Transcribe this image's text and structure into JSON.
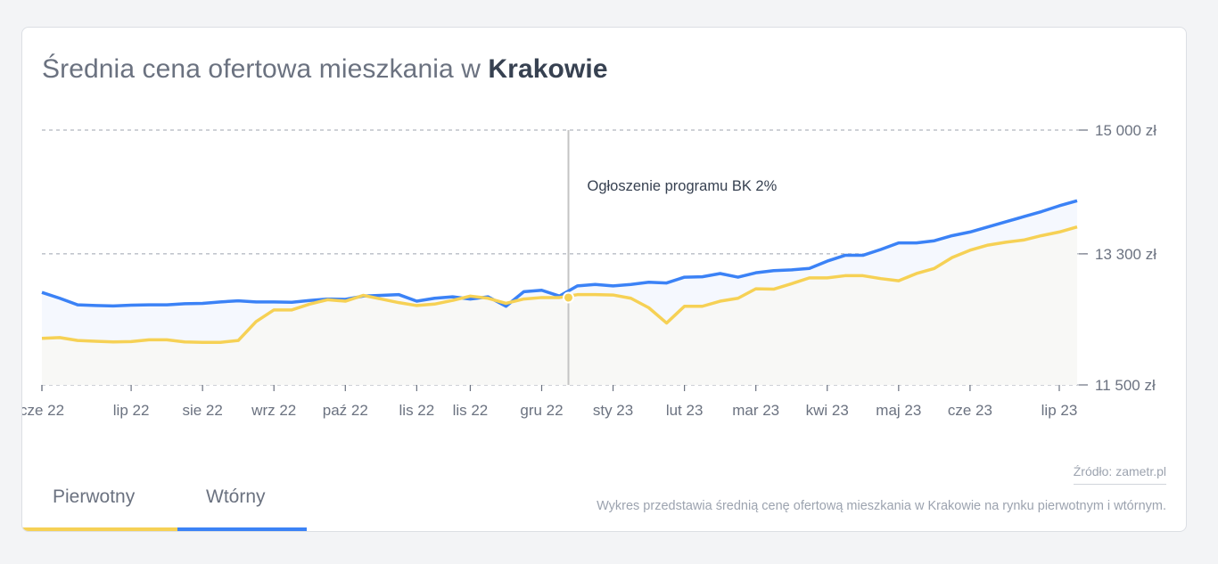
{
  "card": {
    "title_prefix": "Średnia cena ofertowa mieszkania w ",
    "title_city": "Krakowie",
    "source": "Źródło: zametr.pl",
    "description": "Wykres przedstawia średnią cenę ofertową mieszkania w Krakowie na rynku pierwotnym i wtórnym."
  },
  "tabs": [
    {
      "label": "Pierwotny",
      "color": "#f6d155"
    },
    {
      "label": "Wtórny",
      "color": "#3b82f6"
    }
  ],
  "chart_data": {
    "type": "line",
    "title": "Średnia cena ofertowa mieszkania w Krakowie",
    "xlabel": "",
    "ylabel": "",
    "ylim": [
      11500,
      15000
    ],
    "y_ticks": [
      11500,
      13300,
      15000
    ],
    "y_tick_labels": [
      "11 500 zł",
      "13 300 zł",
      "15 000 zł"
    ],
    "grid": true,
    "x_ticks": [
      {
        "index": 0,
        "label": "cze 22"
      },
      {
        "index": 5,
        "label": "lip 22"
      },
      {
        "index": 9,
        "label": "sie 22"
      },
      {
        "index": 13,
        "label": "wrz 22"
      },
      {
        "index": 17,
        "label": "paź 22"
      },
      {
        "index": 21,
        "label": "lis 22"
      },
      {
        "index": 24,
        "label": "lis 22"
      },
      {
        "index": 28,
        "label": "gru 22"
      },
      {
        "index": 32,
        "label": "sty 23"
      },
      {
        "index": 36,
        "label": "lut 23"
      },
      {
        "index": 40,
        "label": "mar 23"
      },
      {
        "index": 44,
        "label": "kwi 23"
      },
      {
        "index": 48,
        "label": "maj 23"
      },
      {
        "index": 52,
        "label": "cze 23"
      },
      {
        "index": 57,
        "label": "lip 23"
      }
    ],
    "annotation": {
      "index": 29.5,
      "label": "Ogłoszenie programu BK 2%",
      "value": 12700
    },
    "series": [
      {
        "name": "Wtórny",
        "color": "#3b82f6",
        "values": [
          12770,
          12690,
          12600,
          12590,
          12585,
          12595,
          12600,
          12600,
          12615,
          12620,
          12640,
          12655,
          12640,
          12640,
          12635,
          12660,
          12680,
          12675,
          12720,
          12730,
          12740,
          12650,
          12690,
          12710,
          12680,
          12710,
          12580,
          12780,
          12800,
          12720,
          12860,
          12880,
          12860,
          12880,
          12910,
          12900,
          12980,
          12985,
          13030,
          12980,
          13040,
          13070,
          13080,
          13100,
          13200,
          13280,
          13280,
          13360,
          13450,
          13450,
          13480,
          13550,
          13600,
          13670,
          13740,
          13810,
          13880,
          13960,
          14030
        ]
      },
      {
        "name": "Pierwotny",
        "color": "#f6d155",
        "values": [
          12140,
          12150,
          12110,
          12100,
          12090,
          12095,
          12120,
          12120,
          12090,
          12085,
          12085,
          12110,
          12370,
          12530,
          12530,
          12610,
          12670,
          12650,
          12730,
          12680,
          12630,
          12590,
          12610,
          12660,
          12720,
          12690,
          12620,
          12680,
          12700,
          12700,
          12740,
          12740,
          12735,
          12690,
          12560,
          12350,
          12580,
          12580,
          12650,
          12690,
          12820,
          12815,
          12890,
          12970,
          12970,
          13000,
          13000,
          12960,
          12930,
          13030,
          13100,
          13250,
          13350,
          13420,
          13460,
          13490,
          13550,
          13600,
          13670
        ]
      }
    ]
  }
}
